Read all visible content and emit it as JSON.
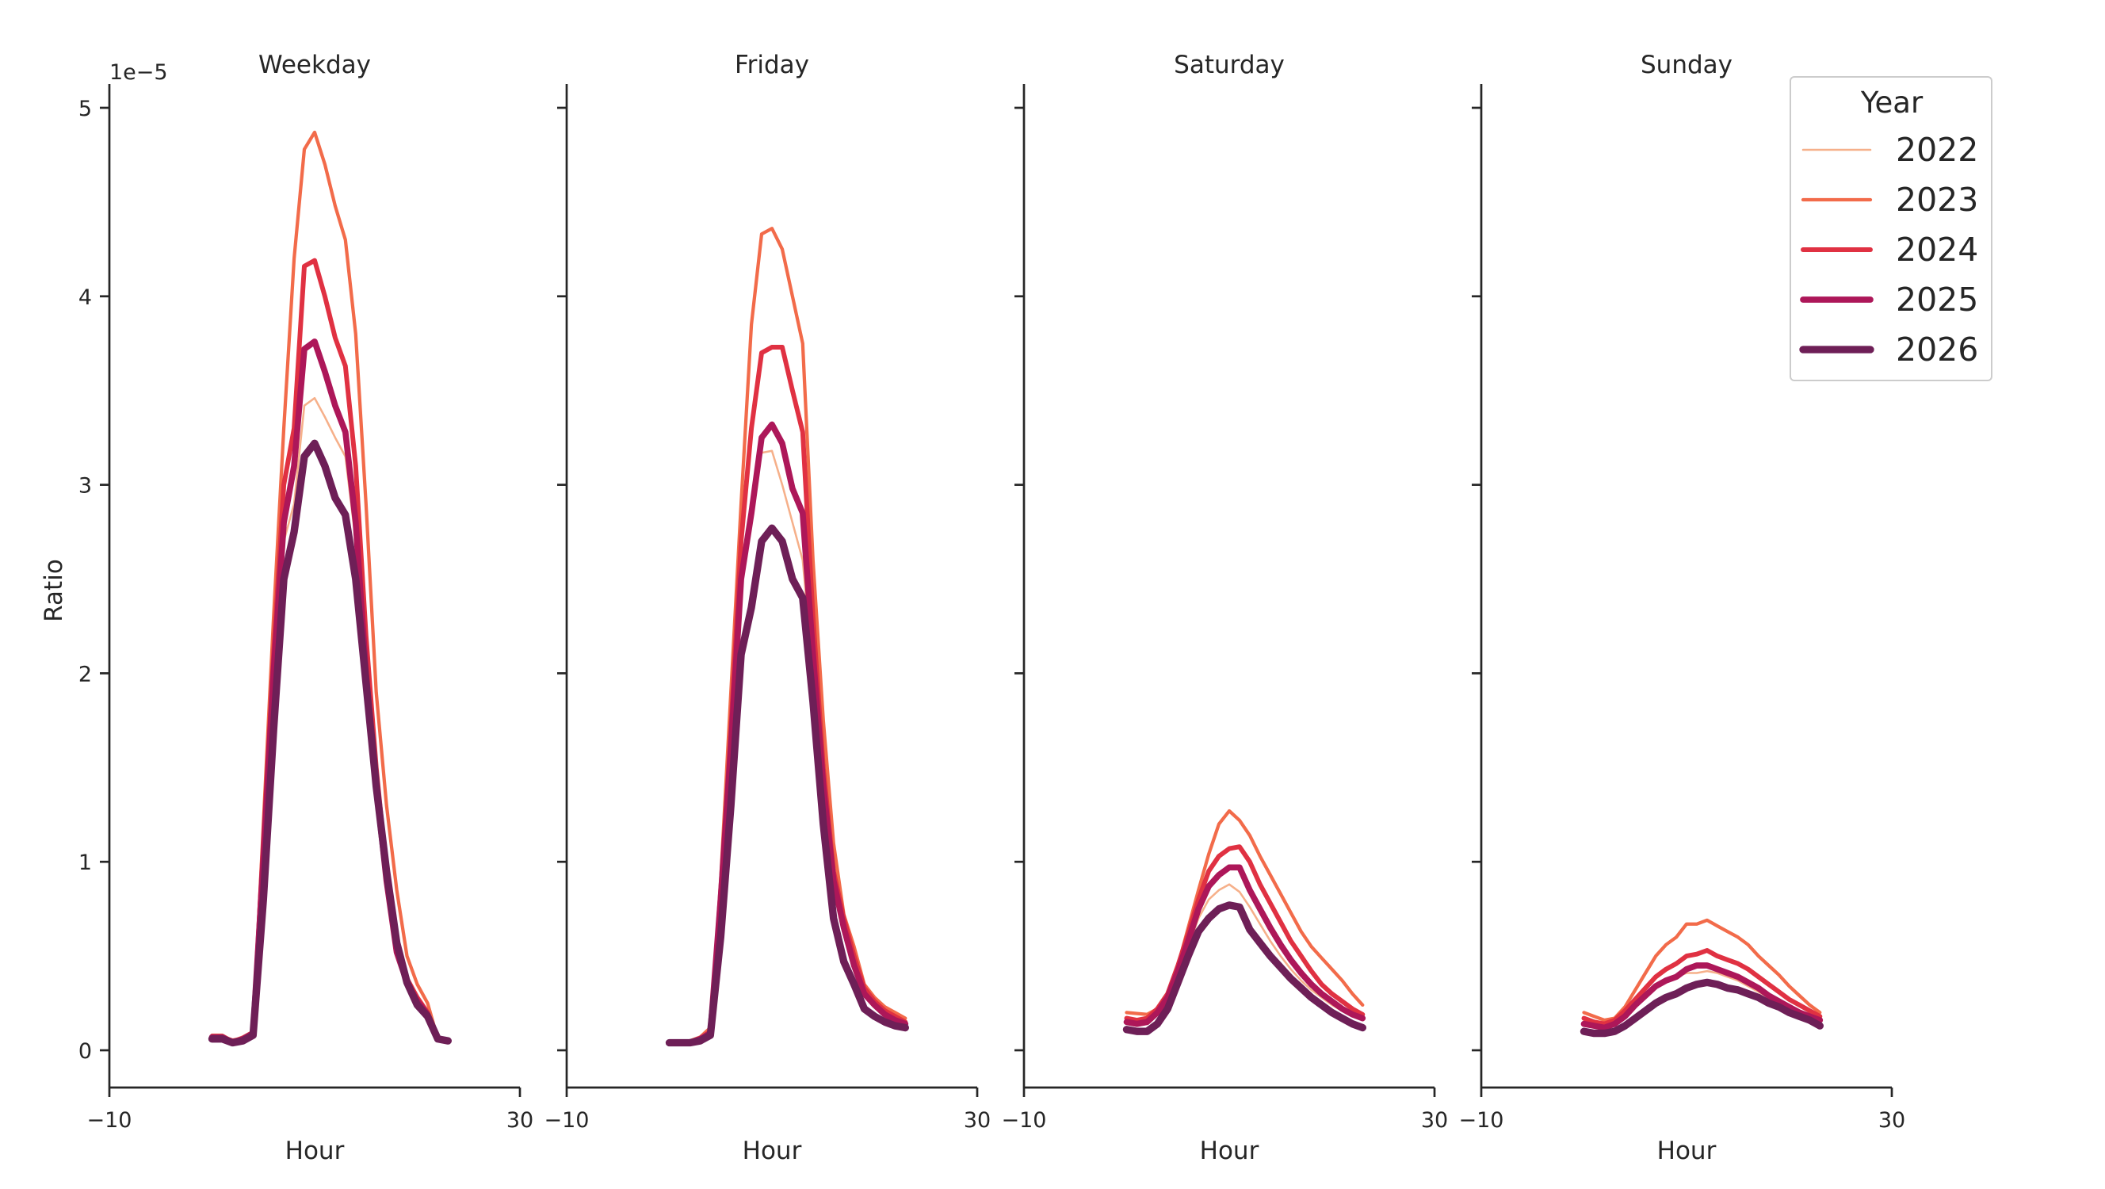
{
  "figure": {
    "ylabel": "Ratio",
    "xlabel": "Hour",
    "offset_text": "1e−5",
    "legend": {
      "title": "Year",
      "placement": "upper-right"
    },
    "series_styles": [
      {
        "name": "2022",
        "color": "#f6b08a",
        "width": 1.5
      },
      {
        "name": "2023",
        "color": "#f26b4a",
        "width": 2.5
      },
      {
        "name": "2024",
        "color": "#e03142",
        "width": 3.5
      },
      {
        "name": "2025",
        "color": "#ad1759",
        "width": 4.5
      },
      {
        "name": "2026",
        "color": "#6e1f57",
        "width": 5.5
      }
    ]
  },
  "chart_data": [
    {
      "type": "line",
      "title": "Weekday",
      "xlabel": "Hour",
      "ylabel": "Ratio",
      "y_scale_note": "1e−5",
      "xlim": [
        -10,
        30
      ],
      "ylim": [
        -0.2,
        5.1
      ],
      "x_ticks": [
        "−10",
        "30"
      ],
      "y_ticks": [
        "0",
        "1",
        "2",
        "3",
        "4",
        "5"
      ],
      "grid": false,
      "x": [
        0,
        1,
        2,
        3,
        4,
        5,
        6,
        7,
        8,
        9,
        10,
        11,
        12,
        13,
        14,
        15,
        16,
        17,
        18,
        19,
        20,
        21,
        22,
        23
      ],
      "series": [
        {
          "name": "2022",
          "values": [
            0.07,
            0.07,
            0.05,
            0.06,
            0.09,
            0.9,
            1.9,
            2.7,
            2.9,
            3.42,
            3.46,
            3.36,
            3.25,
            3.15,
            2.7,
            2.0,
            1.4,
            0.9,
            0.52,
            0.36,
            0.26,
            0.19,
            0.06,
            0.05
          ]
        },
        {
          "name": "2023",
          "values": [
            0.08,
            0.08,
            0.05,
            0.07,
            0.1,
            1.2,
            2.3,
            3.3,
            4.2,
            4.78,
            4.87,
            4.7,
            4.48,
            4.3,
            3.8,
            2.9,
            1.9,
            1.3,
            0.85,
            0.5,
            0.35,
            0.25,
            0.06,
            0.05
          ]
        },
        {
          "name": "2024",
          "values": [
            0.07,
            0.07,
            0.05,
            0.06,
            0.09,
            1.1,
            2.1,
            3.0,
            3.3,
            4.16,
            4.19,
            4.0,
            3.78,
            3.63,
            3.1,
            2.2,
            1.5,
            0.95,
            0.55,
            0.38,
            0.28,
            0.2,
            0.06,
            0.05
          ]
        },
        {
          "name": "2025",
          "values": [
            0.07,
            0.07,
            0.04,
            0.06,
            0.09,
            1.0,
            2.0,
            2.8,
            3.1,
            3.72,
            3.76,
            3.6,
            3.42,
            3.28,
            2.8,
            2.0,
            1.4,
            0.9,
            0.52,
            0.36,
            0.26,
            0.19,
            0.06,
            0.05
          ]
        },
        {
          "name": "2026",
          "values": [
            0.06,
            0.06,
            0.04,
            0.05,
            0.08,
            0.8,
            1.7,
            2.5,
            2.75,
            3.15,
            3.22,
            3.1,
            2.93,
            2.84,
            2.5,
            1.95,
            1.4,
            0.95,
            0.57,
            0.36,
            0.24,
            0.18,
            0.06,
            0.05
          ]
        }
      ]
    },
    {
      "type": "line",
      "title": "Friday",
      "xlabel": "Hour",
      "xlim": [
        -10,
        30
      ],
      "ylim": [
        -0.2,
        5.1
      ],
      "x_ticks": [
        "−10",
        "30"
      ],
      "grid": false,
      "x": [
        0,
        1,
        2,
        3,
        4,
        5,
        6,
        7,
        8,
        9,
        10,
        11,
        12,
        13,
        14,
        15,
        16,
        17,
        18,
        19,
        20,
        21,
        22,
        23
      ],
      "series": [
        {
          "name": "2022",
          "values": [
            0.04,
            0.04,
            0.04,
            0.06,
            0.09,
            0.8,
            1.6,
            2.5,
            2.9,
            3.17,
            3.18,
            3.0,
            2.8,
            2.6,
            2.0,
            1.4,
            0.9,
            0.65,
            0.45,
            0.3,
            0.24,
            0.19,
            0.16,
            0.14
          ]
        },
        {
          "name": "2023",
          "values": [
            0.04,
            0.04,
            0.05,
            0.07,
            0.12,
            0.9,
            1.9,
            2.9,
            3.85,
            4.33,
            4.36,
            4.25,
            4.0,
            3.75,
            2.6,
            1.75,
            1.1,
            0.72,
            0.55,
            0.35,
            0.28,
            0.23,
            0.2,
            0.17
          ]
        },
        {
          "name": "2024",
          "values": [
            0.04,
            0.04,
            0.04,
            0.06,
            0.1,
            0.8,
            1.7,
            2.7,
            3.3,
            3.7,
            3.73,
            3.73,
            3.5,
            3.28,
            2.3,
            1.5,
            0.95,
            0.7,
            0.5,
            0.33,
            0.26,
            0.21,
            0.18,
            0.15
          ]
        },
        {
          "name": "2025",
          "values": [
            0.04,
            0.04,
            0.04,
            0.06,
            0.09,
            0.8,
            1.6,
            2.5,
            2.85,
            3.25,
            3.32,
            3.22,
            2.98,
            2.85,
            2.1,
            1.4,
            0.9,
            0.65,
            0.45,
            0.3,
            0.24,
            0.19,
            0.16,
            0.14
          ]
        },
        {
          "name": "2026",
          "values": [
            0.04,
            0.04,
            0.04,
            0.05,
            0.08,
            0.6,
            1.3,
            2.1,
            2.35,
            2.7,
            2.77,
            2.7,
            2.5,
            2.4,
            1.85,
            1.2,
            0.7,
            0.47,
            0.35,
            0.22,
            0.18,
            0.15,
            0.13,
            0.12
          ]
        }
      ]
    },
    {
      "type": "line",
      "title": "Saturday",
      "xlabel": "Hour",
      "xlim": [
        -10,
        30
      ],
      "ylim": [
        -0.2,
        5.1
      ],
      "x_ticks": [
        "−10",
        "30"
      ],
      "grid": false,
      "x": [
        0,
        1,
        2,
        3,
        4,
        5,
        6,
        7,
        8,
        9,
        10,
        11,
        12,
        13,
        14,
        15,
        16,
        17,
        18,
        19,
        20,
        21,
        22,
        23
      ],
      "series": [
        {
          "name": "2022",
          "values": [
            0.14,
            0.13,
            0.14,
            0.19,
            0.27,
            0.4,
            0.55,
            0.7,
            0.8,
            0.85,
            0.88,
            0.84,
            0.76,
            0.67,
            0.58,
            0.5,
            0.43,
            0.37,
            0.32,
            0.28,
            0.24,
            0.21,
            0.19,
            0.17
          ]
        },
        {
          "name": "2023",
          "values": [
            0.2,
            0.195,
            0.19,
            0.22,
            0.28,
            0.45,
            0.65,
            0.85,
            1.04,
            1.2,
            1.27,
            1.22,
            1.14,
            1.03,
            0.93,
            0.83,
            0.73,
            0.63,
            0.55,
            0.49,
            0.43,
            0.37,
            0.3,
            0.24
          ]
        },
        {
          "name": "2024",
          "values": [
            0.17,
            0.16,
            0.17,
            0.22,
            0.3,
            0.45,
            0.62,
            0.8,
            0.95,
            1.03,
            1.07,
            1.08,
            1.0,
            0.88,
            0.78,
            0.68,
            0.58,
            0.5,
            0.42,
            0.35,
            0.3,
            0.26,
            0.22,
            0.19
          ]
        },
        {
          "name": "2025",
          "values": [
            0.15,
            0.14,
            0.15,
            0.2,
            0.28,
            0.42,
            0.58,
            0.75,
            0.87,
            0.93,
            0.97,
            0.97,
            0.85,
            0.75,
            0.65,
            0.56,
            0.48,
            0.41,
            0.35,
            0.3,
            0.26,
            0.22,
            0.19,
            0.17
          ]
        },
        {
          "name": "2026",
          "values": [
            0.11,
            0.1,
            0.1,
            0.14,
            0.22,
            0.36,
            0.5,
            0.63,
            0.7,
            0.75,
            0.77,
            0.76,
            0.64,
            0.57,
            0.5,
            0.44,
            0.38,
            0.33,
            0.28,
            0.24,
            0.2,
            0.17,
            0.14,
            0.12
          ]
        }
      ]
    },
    {
      "type": "line",
      "title": "Sunday",
      "xlabel": "Hour",
      "xlim": [
        -10,
        30
      ],
      "ylim": [
        -0.2,
        5.1
      ],
      "x_ticks": [
        "−10",
        "30"
      ],
      "grid": false,
      "x": [
        0,
        1,
        2,
        3,
        4,
        5,
        6,
        7,
        8,
        9,
        10,
        11,
        12,
        13,
        14,
        15,
        16,
        17,
        18,
        19,
        20,
        21,
        22,
        23
      ],
      "series": [
        {
          "name": "2022",
          "values": [
            0.16,
            0.14,
            0.13,
            0.15,
            0.19,
            0.25,
            0.3,
            0.35,
            0.37,
            0.39,
            0.41,
            0.41,
            0.42,
            0.41,
            0.39,
            0.37,
            0.34,
            0.31,
            0.28,
            0.25,
            0.22,
            0.2,
            0.18,
            0.17
          ]
        },
        {
          "name": "2023",
          "values": [
            0.2,
            0.18,
            0.16,
            0.17,
            0.23,
            0.32,
            0.41,
            0.5,
            0.56,
            0.6,
            0.67,
            0.67,
            0.69,
            0.66,
            0.63,
            0.6,
            0.56,
            0.5,
            0.45,
            0.4,
            0.34,
            0.29,
            0.24,
            0.2
          ]
        },
        {
          "name": "2024",
          "values": [
            0.17,
            0.15,
            0.14,
            0.16,
            0.21,
            0.27,
            0.33,
            0.39,
            0.43,
            0.46,
            0.5,
            0.51,
            0.53,
            0.5,
            0.48,
            0.46,
            0.43,
            0.39,
            0.35,
            0.31,
            0.27,
            0.24,
            0.21,
            0.18
          ]
        },
        {
          "name": "2025",
          "values": [
            0.14,
            0.13,
            0.12,
            0.14,
            0.18,
            0.24,
            0.29,
            0.34,
            0.37,
            0.39,
            0.43,
            0.45,
            0.45,
            0.43,
            0.41,
            0.39,
            0.36,
            0.33,
            0.29,
            0.26,
            0.23,
            0.2,
            0.18,
            0.16
          ]
        },
        {
          "name": "2026",
          "values": [
            0.1,
            0.09,
            0.09,
            0.1,
            0.13,
            0.17,
            0.21,
            0.25,
            0.28,
            0.3,
            0.33,
            0.35,
            0.36,
            0.35,
            0.33,
            0.32,
            0.3,
            0.28,
            0.25,
            0.23,
            0.2,
            0.18,
            0.16,
            0.13
          ]
        }
      ]
    }
  ]
}
